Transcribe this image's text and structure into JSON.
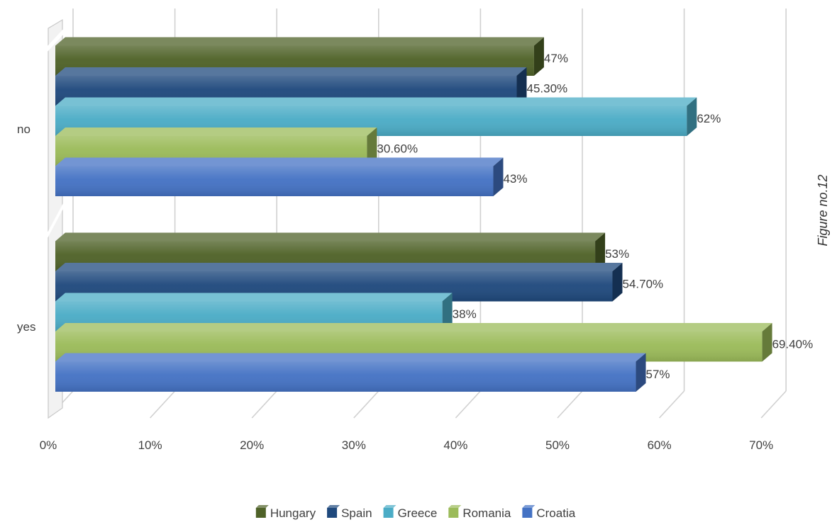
{
  "side_caption": "Figure no.12",
  "chart_data": {
    "type": "bar",
    "orientation": "horizontal",
    "style": "3d-clustered",
    "categories": [
      "yes",
      "no"
    ],
    "series": [
      {
        "name": "Croatia",
        "values": [
          57,
          43
        ],
        "labels": [
          "57%",
          "43%"
        ],
        "color": "#4472C4"
      },
      {
        "name": "Romania",
        "values": [
          69.4,
          30.6
        ],
        "labels": [
          "69.40%",
          "30.60%"
        ],
        "color": "#9BBB59"
      },
      {
        "name": "Greece",
        "values": [
          38,
          62
        ],
        "labels": [
          "38%",
          "62%"
        ],
        "color": "#4BACC6"
      },
      {
        "name": "Spain",
        "values": [
          54.7,
          45.3
        ],
        "labels": [
          "54.70%",
          "45.30%"
        ],
        "color": "#1F497D"
      },
      {
        "name": "Hungary",
        "values": [
          53,
          47
        ],
        "labels": [
          "53%",
          "47%"
        ],
        "color": "#4F6228"
      }
    ],
    "xlim": [
      0,
      70
    ],
    "x_ticks": [
      "0%",
      "10%",
      "20%",
      "30%",
      "40%",
      "50%",
      "60%",
      "70%"
    ],
    "grid": true,
    "legend_position": "bottom",
    "legend_order": [
      "Hungary",
      "Spain",
      "Greece",
      "Romania",
      "Croatia"
    ]
  }
}
